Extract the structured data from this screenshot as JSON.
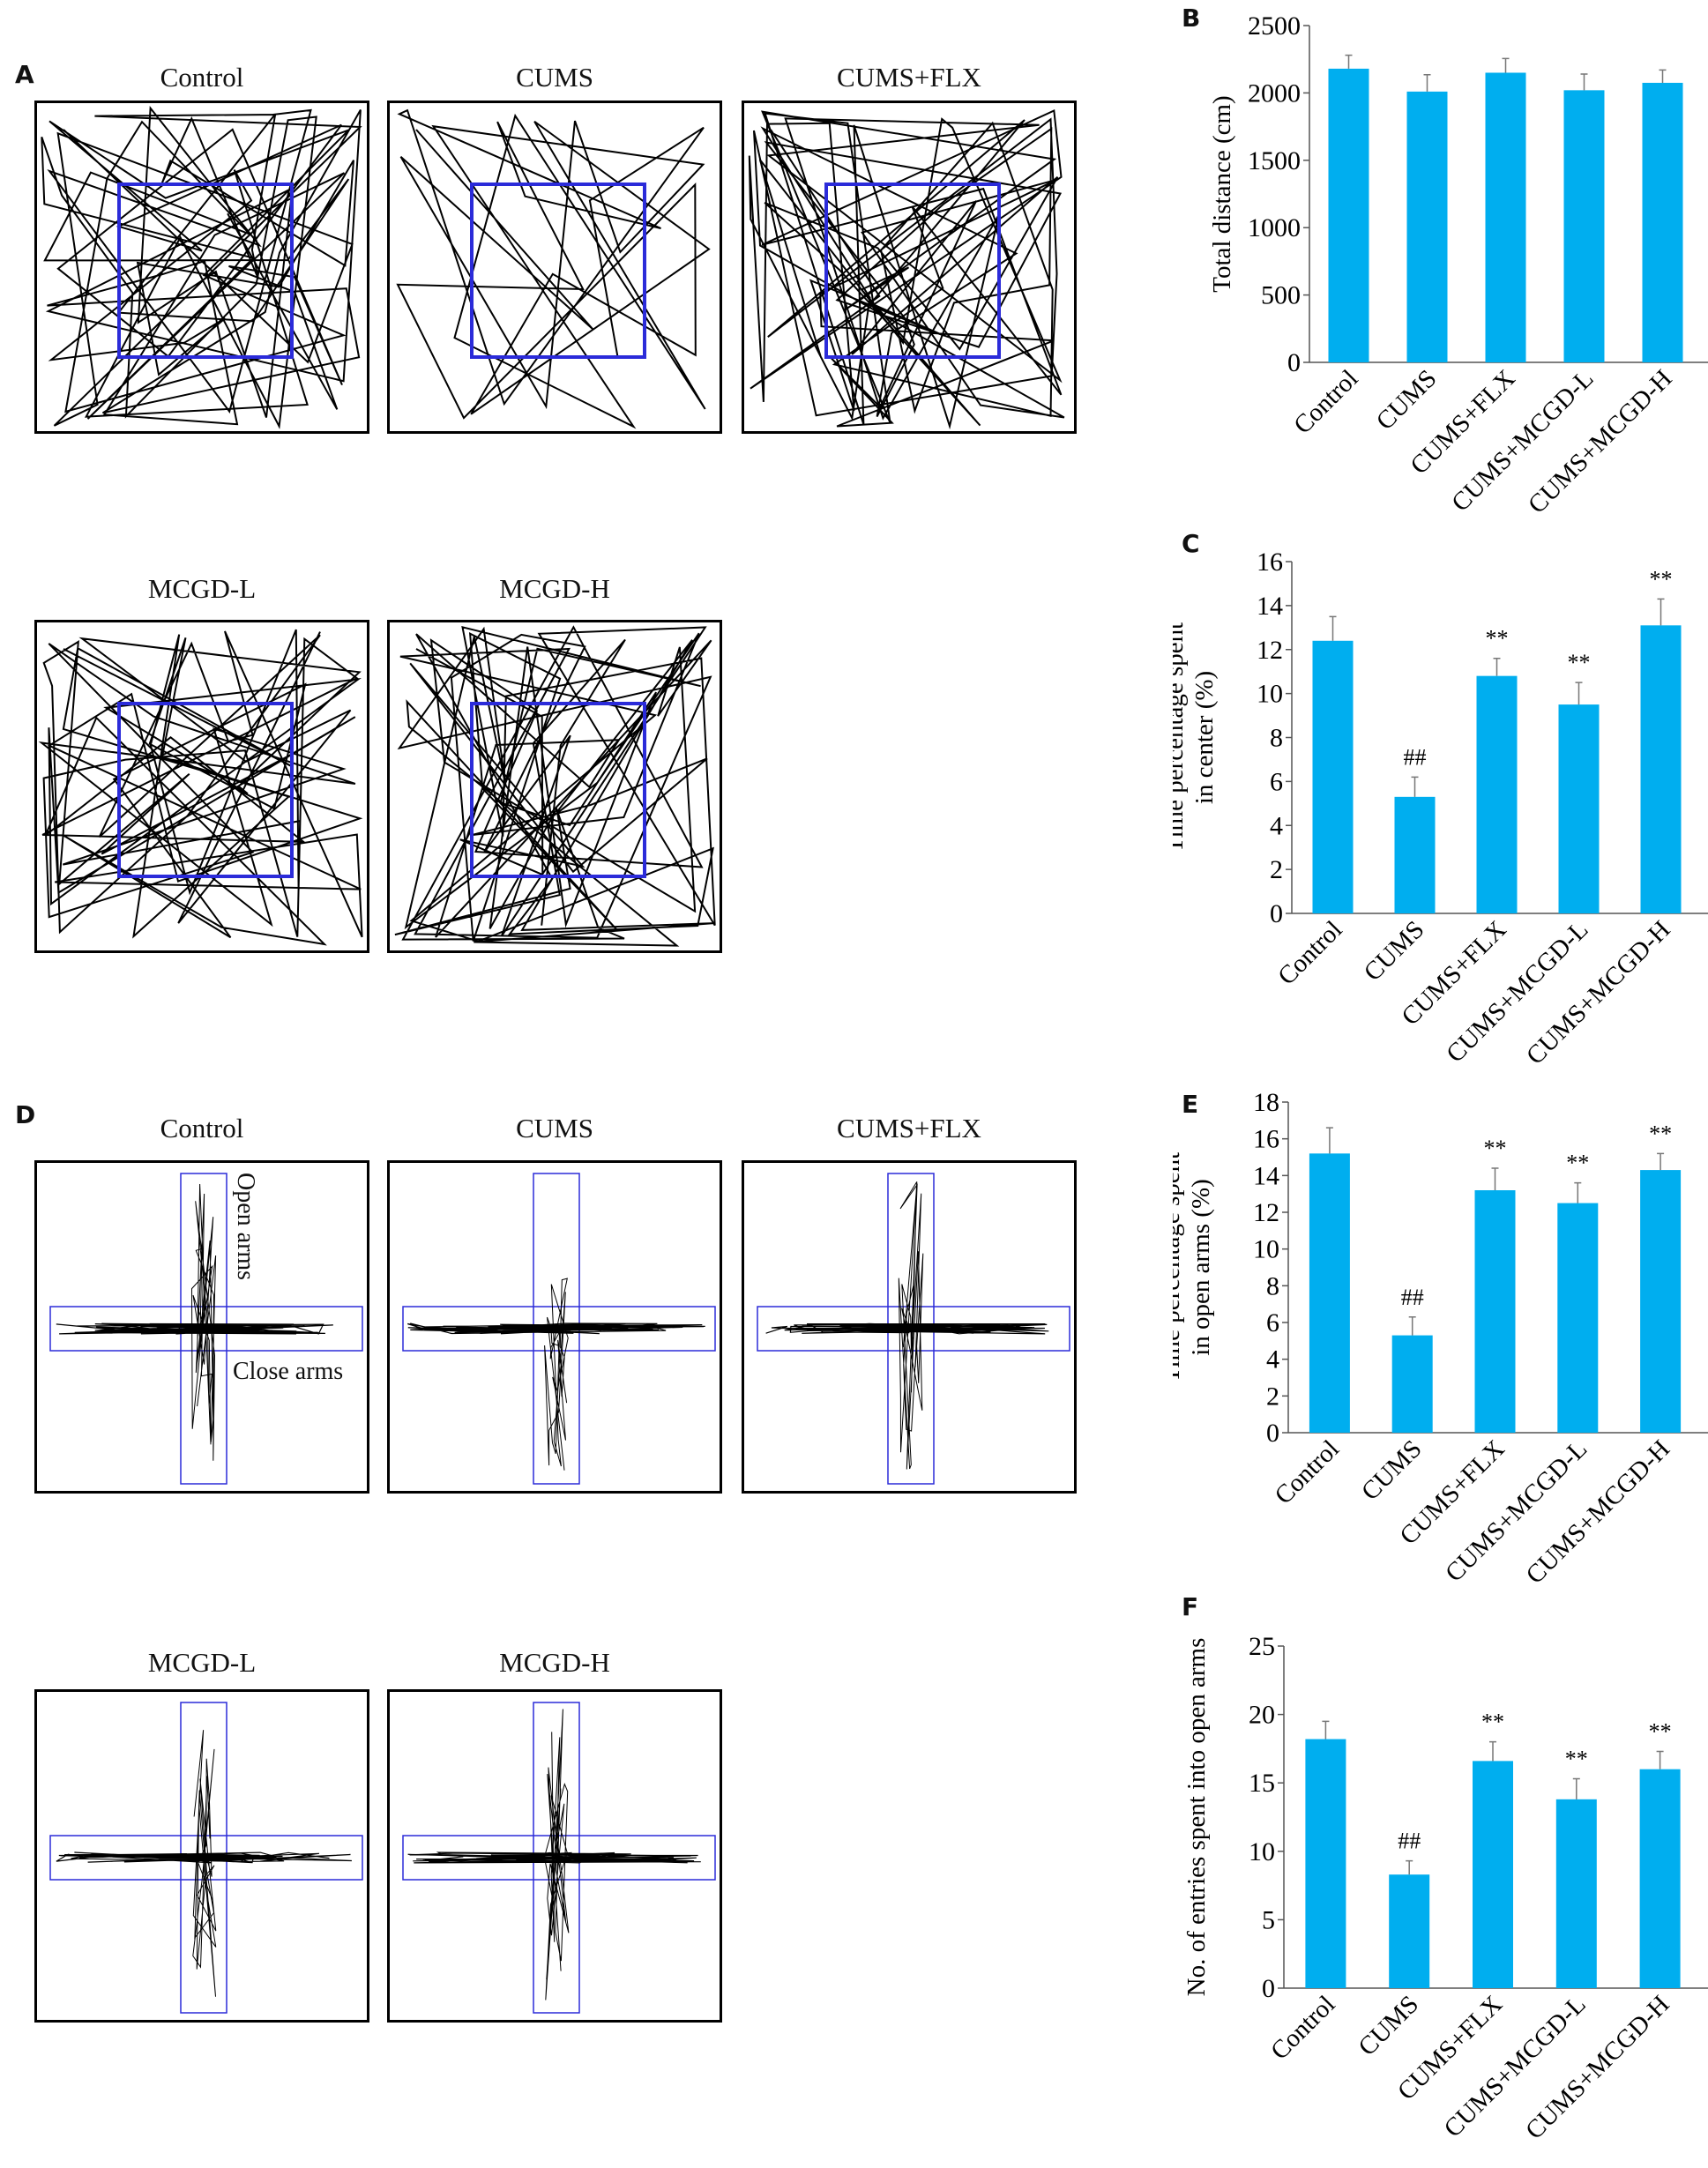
{
  "panels": {
    "A": "A",
    "B": "B",
    "C": "C",
    "D": "D",
    "E": "E",
    "F": "F"
  },
  "open_field": {
    "titles": [
      "Control",
      "CUMS",
      "CUMS+FLX",
      "MCGD-L",
      "MCGD-H"
    ]
  },
  "epm": {
    "titles": [
      "Control",
      "CUMS",
      "CUMS+FLX",
      "MCGD-L",
      "MCGD-H"
    ],
    "open_arms_label": "Open arms",
    "close_arms_label": "Close arms"
  },
  "colors": {
    "bar": "#00AEEF",
    "zone": "#2B2BD9",
    "error": "#777777"
  },
  "chart_data": [
    {
      "id": "B",
      "type": "bar",
      "categories": [
        "Control",
        "CUMS",
        "CUMS+FLX",
        "CUMS+MCGD-L",
        "CUMS+MCGD-H"
      ],
      "values": [
        2180,
        2010,
        2150,
        2020,
        2075
      ],
      "errors": [
        100,
        125,
        105,
        120,
        95
      ],
      "annotations": [
        "",
        "",
        "",
        "",
        ""
      ],
      "ylabel": [
        "Total distance (cm)"
      ],
      "ylim": [
        0,
        2500
      ],
      "yticks": [
        0,
        500,
        1000,
        1500,
        2000,
        2500
      ]
    },
    {
      "id": "C",
      "type": "bar",
      "categories": [
        "Control",
        "CUMS",
        "CUMS+FLX",
        "CUMS+MCGD-L",
        "CUMS+MCGD-H"
      ],
      "values": [
        12.4,
        5.3,
        10.8,
        9.5,
        13.1
      ],
      "errors": [
        1.1,
        0.9,
        0.8,
        1.0,
        1.2
      ],
      "annotations": [
        "",
        "##",
        "**",
        "**",
        "**"
      ],
      "ylabel": [
        "Time percentage spent",
        "in center (%)"
      ],
      "ylim": [
        0,
        16
      ],
      "yticks": [
        0,
        2,
        4,
        6,
        8,
        10,
        12,
        14,
        16
      ]
    },
    {
      "id": "E",
      "type": "bar",
      "categories": [
        "Control",
        "CUMS",
        "CUMS+FLX",
        "CUMS+MCGD-L",
        "CUMS+MCGD-H"
      ],
      "values": [
        15.2,
        5.3,
        13.2,
        12.5,
        14.3
      ],
      "errors": [
        1.4,
        1.0,
        1.2,
        1.1,
        0.9
      ],
      "annotations": [
        "",
        "##",
        "**",
        "**",
        "**"
      ],
      "ylabel": [
        "Time percentage spent",
        "in open arms (%)"
      ],
      "ylim": [
        0,
        18
      ],
      "yticks": [
        0,
        2,
        4,
        6,
        8,
        10,
        12,
        14,
        16,
        18
      ]
    },
    {
      "id": "F",
      "type": "bar",
      "categories": [
        "Control",
        "CUMS",
        "CUMS+FLX",
        "CUMS+MCGD-L",
        "CUMS+MCGD-H"
      ],
      "values": [
        18.2,
        8.3,
        16.6,
        13.8,
        16.0
      ],
      "errors": [
        1.3,
        1.0,
        1.4,
        1.5,
        1.3
      ],
      "annotations": [
        "",
        "##",
        "**",
        "**",
        "**"
      ],
      "ylabel": [
        "No. of entries spent into open arms"
      ],
      "ylim": [
        0,
        25
      ],
      "yticks": [
        0,
        5,
        10,
        15,
        20,
        25
      ]
    }
  ]
}
